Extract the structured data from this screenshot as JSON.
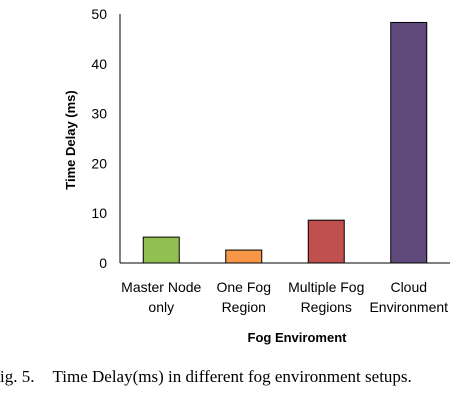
{
  "chart_data": {
    "type": "bar",
    "categories": [
      [
        "Master Node",
        "only"
      ],
      [
        "One Fog",
        "Region"
      ],
      [
        "Multiple Fog",
        "Regions"
      ],
      [
        "Cloud",
        "Environment"
      ]
    ],
    "values": [
      5.2,
      2.6,
      8.6,
      48.3
    ],
    "colors": [
      "#92c050",
      "#f79646",
      "#c0504d",
      "#604a7b"
    ],
    "border_color": "#000000",
    "xlabel": "Fog Enviroment",
    "ylabel": "Time Delay (ms)",
    "ylim": [
      0,
      50
    ],
    "yticks": [
      0,
      10,
      20,
      30,
      40,
      50
    ],
    "grid": false,
    "legend": "none"
  },
  "caption": {
    "label": "ig. 5.",
    "text": "Time Delay(ms) in different fog environment setups."
  }
}
